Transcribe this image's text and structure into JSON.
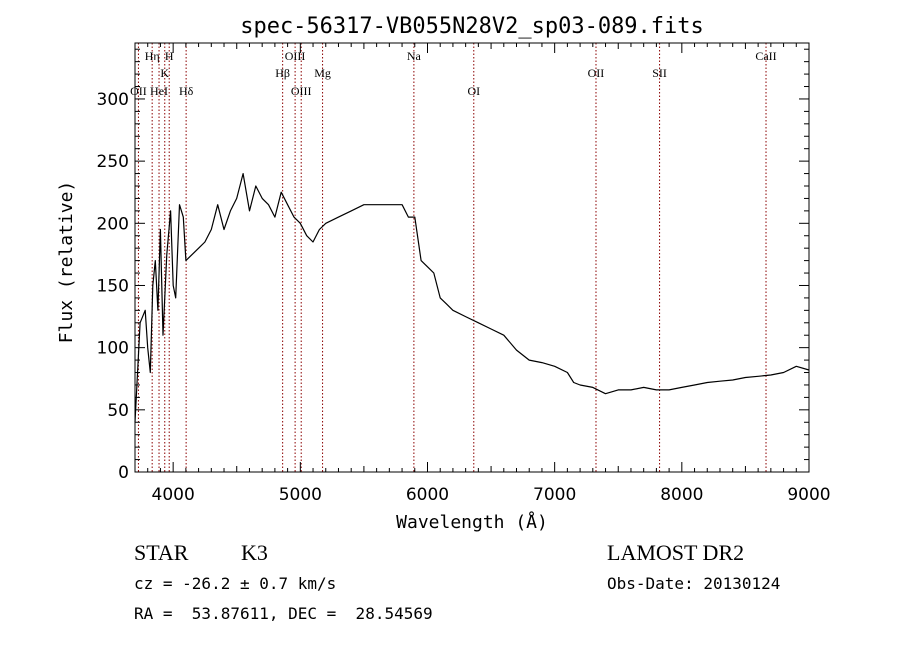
{
  "chart_data": {
    "type": "line",
    "title": "spec-56317-VB055N28V2_sp03-089.fits",
    "xlabel": "Wavelength (Å)",
    "ylabel": "Flux (relative)",
    "xlim": [
      3700,
      9000
    ],
    "ylim": [
      0,
      345
    ],
    "xticks": [
      4000,
      5000,
      6000,
      7000,
      8000,
      9000
    ],
    "yticks": [
      0,
      50,
      100,
      150,
      200,
      250,
      300
    ],
    "series": [
      {
        "x": [
          3700,
          3740,
          3780,
          3800,
          3820,
          3840,
          3860,
          3880,
          3900,
          3920,
          3950,
          3980,
          4000,
          4020,
          4050,
          4080,
          4100,
          4150,
          4200,
          4250,
          4300,
          4350,
          4400,
          4450,
          4500,
          4550,
          4600,
          4650,
          4700,
          4750,
          4800,
          4850,
          4900,
          4950,
          5000,
          5050,
          5100,
          5150,
          5200,
          5300,
          5400,
          5500,
          5600,
          5700,
          5800,
          5850,
          5900,
          5950,
          6000,
          6050,
          6100,
          6150,
          6200,
          6300,
          6400,
          6500,
          6600,
          6700,
          6800,
          6900,
          7000,
          7100,
          7150,
          7200,
          7300,
          7400,
          7500,
          7600,
          7700,
          7800,
          7900,
          8000,
          8100,
          8200,
          8300,
          8400,
          8500,
          8600,
          8700,
          8800,
          8900,
          9000
        ],
        "y": [
          40,
          120,
          130,
          100,
          80,
          150,
          170,
          130,
          195,
          110,
          175,
          210,
          150,
          140,
          215,
          205,
          170,
          175,
          180,
          185,
          195,
          215,
          195,
          210,
          220,
          240,
          210,
          230,
          220,
          215,
          205,
          225,
          215,
          205,
          200,
          190,
          185,
          195,
          200,
          205,
          210,
          215,
          215,
          215,
          215,
          205,
          205,
          170,
          165,
          160,
          140,
          135,
          130,
          125,
          120,
          115,
          110,
          98,
          90,
          88,
          85,
          80,
          72,
          70,
          68,
          63,
          66,
          66,
          68,
          66,
          66,
          68,
          70,
          72,
          73,
          74,
          76,
          77,
          78,
          80,
          85,
          82
        ]
      }
    ],
    "lines": [
      {
        "label": "OII",
        "x": 3727,
        "row": 3
      },
      {
        "label": "Hη",
        "x": 3835,
        "row": 1
      },
      {
        "label": "HeI",
        "x": 3889,
        "row": 3
      },
      {
        "label": "K",
        "x": 3934,
        "row": 2
      },
      {
        "label": "H",
        "x": 3969,
        "row": 1
      },
      {
        "label": "Hδ",
        "x": 4102,
        "row": 3
      },
      {
        "label": "Hβ",
        "x": 4861,
        "row": 2
      },
      {
        "label": "OIII",
        "x": 4959,
        "row": 1
      },
      {
        "label": "OIII",
        "x": 5007,
        "row": 3
      },
      {
        "label": "Mg",
        "x": 5175,
        "row": 2
      },
      {
        "label": "Na",
        "x": 5893,
        "row": 1
      },
      {
        "label": "OI",
        "x": 6364,
        "row": 3
      },
      {
        "label": "OII",
        "x": 7325,
        "row": 2
      },
      {
        "label": "SII",
        "x": 7825,
        "row": 2
      },
      {
        "label": "CaII",
        "x": 8662,
        "row": 1
      }
    ],
    "grid": false,
    "line_color": "#000000",
    "marker_line_color": "#8b0000"
  },
  "info": {
    "class": "STAR",
    "subclass": "K3",
    "survey": "LAMOST DR2",
    "cz": "cz = -26.2 ± 0.7 km/s",
    "obs_date": "Obs-Date: 20130124",
    "radec": "RA =  53.87611, DEC =  28.54569"
  }
}
